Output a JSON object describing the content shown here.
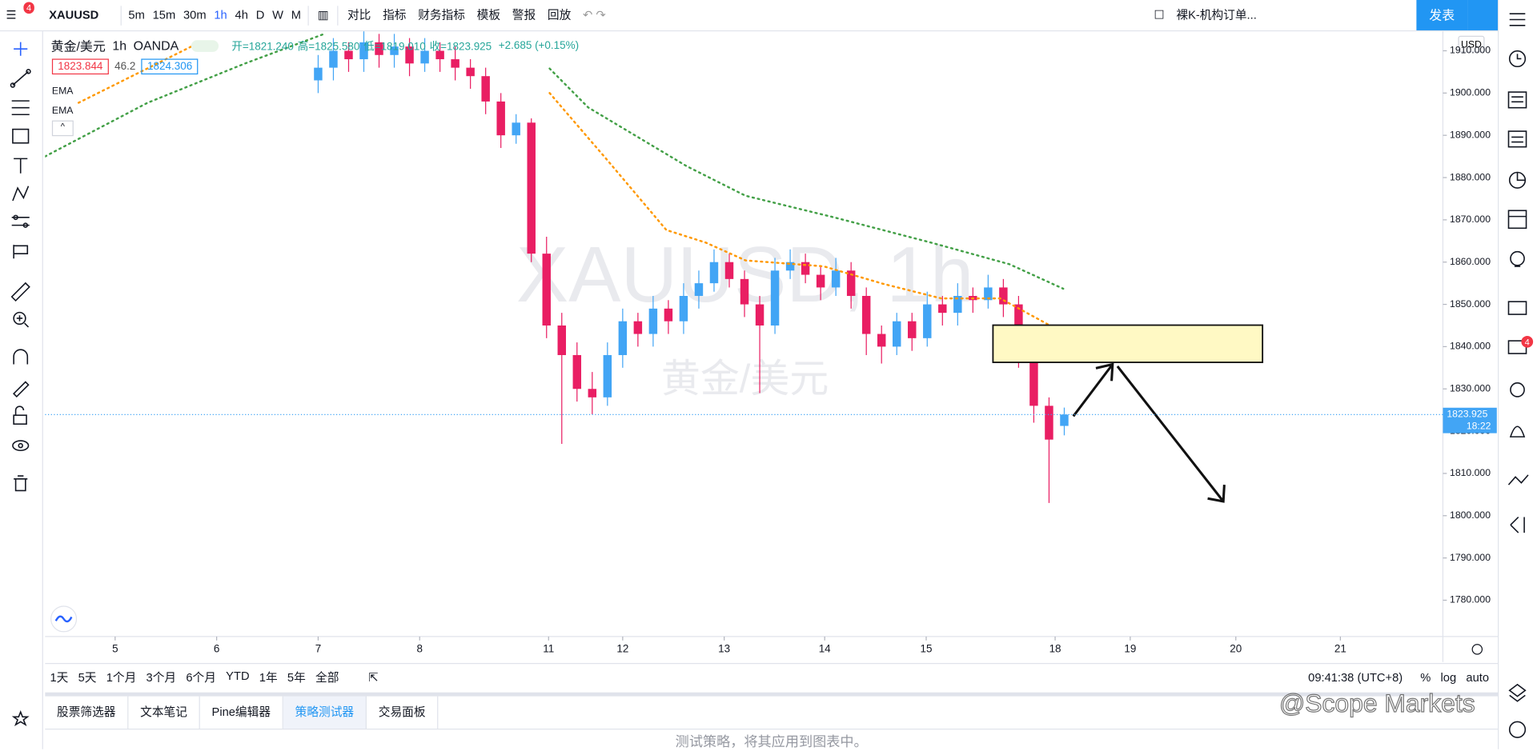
{
  "toolbar": {
    "symbol": "XAUUSD",
    "badge": "4",
    "intervals": [
      "5m",
      "15m",
      "30m",
      "1h",
      "4h",
      "D",
      "W",
      "M"
    ],
    "buttons": [
      "对比",
      "指标",
      "财务指标",
      "模板",
      "警报",
      "回放"
    ],
    "layout_name": "裸K-机构订单...",
    "publish": "发表"
  },
  "legend": {
    "symbol": "黄金/美元",
    "interval": "1h",
    "exchange": "OANDA",
    "ohlc": [
      "开=1821.240",
      "高=1825.580",
      "低=1819.010",
      "收=1823.925"
    ],
    "change": "+2.685 (+0.15%)",
    "bid": "1823.844",
    "spread": "46.2",
    "ask": "1824.306",
    "indicators": [
      "EMA",
      "EMA"
    ]
  },
  "watermark": {
    "symbol": "XAUUSD, 1h",
    "name": "黄金/美元"
  },
  "chart_data": {
    "type": "candlestick",
    "currency": "USD",
    "up_color": "#42a5f5",
    "down_color": "#e91e63",
    "x": [
      2.0,
      2.15,
      2.3,
      2.45,
      2.6,
      2.75,
      2.9,
      3.05,
      3.2,
      3.35,
      3.5,
      3.65,
      3.8,
      3.95,
      4.1,
      4.25,
      4.4,
      4.55,
      4.7,
      4.85,
      5.0,
      5.15,
      5.3,
      5.45,
      5.6,
      5.75,
      5.9,
      6.05,
      6.2,
      6.35,
      6.5,
      6.65,
      6.8,
      6.95,
      7.1,
      7.25,
      7.4,
      7.55,
      7.7,
      7.85,
      8.0,
      8.15,
      8.3,
      8.45,
      8.6,
      8.75,
      8.9,
      9.05,
      9.2,
      9.35
    ],
    "open": [
      1903,
      1906,
      1910,
      1908,
      1912,
      1909,
      1911,
      1907,
      1910,
      1908,
      1906,
      1904,
      1898,
      1890,
      1893,
      1862,
      1845,
      1838,
      1830,
      1828,
      1838,
      1846,
      1843,
      1849,
      1846,
      1852,
      1855,
      1860,
      1856,
      1850,
      1845,
      1858,
      1860,
      1857,
      1854,
      1858,
      1852,
      1843,
      1840,
      1846,
      1842,
      1850,
      1848,
      1852,
      1851,
      1854,
      1850,
      1838,
      1826,
      1821.24
    ],
    "high": [
      1909,
      1913,
      1912,
      1915,
      1914,
      1914,
      1913,
      1913,
      1912,
      1911,
      1908,
      1906,
      1900,
      1895,
      1894,
      1866,
      1848,
      1841,
      1834,
      1841,
      1849,
      1848,
      1852,
      1851,
      1855,
      1858,
      1863,
      1862,
      1858,
      1852,
      1861,
      1863,
      1862,
      1859,
      1861,
      1860,
      1854,
      1845,
      1848,
      1848,
      1853,
      1852,
      1855,
      1854,
      1857,
      1856,
      1852,
      1840,
      1828,
      1825.58
    ],
    "low": [
      1900,
      1903,
      1905,
      1905,
      1906,
      1906,
      1904,
      1905,
      1905,
      1903,
      1901,
      1895,
      1887,
      1888,
      1860,
      1842,
      1817,
      1827,
      1824,
      1826,
      1835,
      1840,
      1840,
      1843,
      1843,
      1849,
      1853,
      1854,
      1847,
      1829,
      1843,
      1856,
      1855,
      1851,
      1852,
      1849,
      1838,
      1836,
      1838,
      1839,
      1840,
      1845,
      1845,
      1848,
      1849,
      1847,
      1835,
      1822,
      1803,
      1819.01
    ],
    "close": [
      1906,
      1910,
      1908,
      1912,
      1909,
      1911,
      1907,
      1910,
      1908,
      1906,
      1904,
      1898,
      1890,
      1893,
      1862,
      1845,
      1838,
      1830,
      1828,
      1838,
      1846,
      1843,
      1849,
      1846,
      1852,
      1855,
      1860,
      1856,
      1850,
      1845,
      1858,
      1860,
      1857,
      1854,
      1858,
      1852,
      1843,
      1840,
      1846,
      1842,
      1850,
      1848,
      1852,
      1851,
      1854,
      1850,
      1838,
      1826,
      1818,
      1823.925
    ],
    "ema": [
      {
        "color": "#ff9800",
        "x": [
          -0.36,
          0.8,
          3.89,
          4.28,
          4.86,
          5.43,
          5.82,
          6.21,
          6.98,
          7.56,
          8.14,
          8.72,
          9.34
        ],
        "values": [
          1897.7,
          1911.6,
          null,
          1900.0,
          1883.8,
          1867.6,
          1864.6,
          1860.4,
          1859.0,
          1854.9,
          1851.4,
          1851.4,
          1843.3
        ]
      },
      {
        "color": "#43a047",
        "x": [
          -0.69,
          0.32,
          1.28,
          2.06,
          3.89,
          4.28,
          4.66,
          5.63,
          6.21,
          7.08,
          8.04,
          8.81,
          9.34
        ],
        "values": [
          1885.0,
          1897.7,
          1907.0,
          1914.0,
          null,
          1905.8,
          1896.6,
          1882.7,
          1875.7,
          1870.6,
          1864.6,
          1859.5,
          1853.7
        ]
      }
    ],
    "xlim": [
      -0.69,
      13.08
    ],
    "xticks": [
      {
        "value": 0,
        "label": "5"
      },
      {
        "value": 1.0,
        "label": "6"
      },
      {
        "value": 2.0,
        "label": "7"
      },
      {
        "value": 3.0,
        "label": "8"
      },
      {
        "value": 4.27,
        "label": "11"
      },
      {
        "value": 5.0,
        "label": "12"
      },
      {
        "value": 6.0,
        "label": "13"
      },
      {
        "value": 6.99,
        "label": "14"
      },
      {
        "value": 7.99,
        "label": "15"
      },
      {
        "value": 9.26,
        "label": "18"
      },
      {
        "value": 10.0,
        "label": "19"
      },
      {
        "value": 11.04,
        "label": "20"
      },
      {
        "value": 12.07,
        "label": "21"
      }
    ],
    "ylim": [
      1771.4,
      1914.6
    ],
    "yticks": [
      {
        "value": 1780,
        "label": "1780.000"
      },
      {
        "value": 1790,
        "label": "1790.000"
      },
      {
        "value": 1800,
        "label": "1800.000"
      },
      {
        "value": 1810,
        "label": "1810.000"
      },
      {
        "value": 1820,
        "label": "1820.000"
      },
      {
        "value": 1830,
        "label": "1830.000"
      },
      {
        "value": 1840,
        "label": "1840.000"
      },
      {
        "value": 1850,
        "label": "1850.000"
      },
      {
        "value": 1860,
        "label": "1860.000"
      },
      {
        "value": 1870,
        "label": "1870.000"
      },
      {
        "value": 1880,
        "label": "1880.000"
      },
      {
        "value": 1890,
        "label": "1890.000"
      },
      {
        "value": 1900,
        "label": "1900.000"
      },
      {
        "value": 1910,
        "label": "1910.000"
      }
    ],
    "grid": false,
    "last_price_label": "1823.925",
    "countdown": "18:22"
  },
  "range_bar": {
    "ranges": [
      "1天",
      "5天",
      "1个月",
      "3个月",
      "6个月",
      "YTD",
      "1年",
      "5年",
      "全部"
    ],
    "clock": "09:41:38 (UTC+8)",
    "scale_options": [
      "%",
      "log",
      "auto"
    ]
  },
  "panel": {
    "tabs": [
      "股票筛选器",
      "文本笔记",
      "Pine编辑器",
      "策略测试器",
      "交易面板"
    ],
    "message": "测试策略，将其应用到图表中。"
  },
  "brand": "@Scope Markets",
  "notification_badge": "4"
}
